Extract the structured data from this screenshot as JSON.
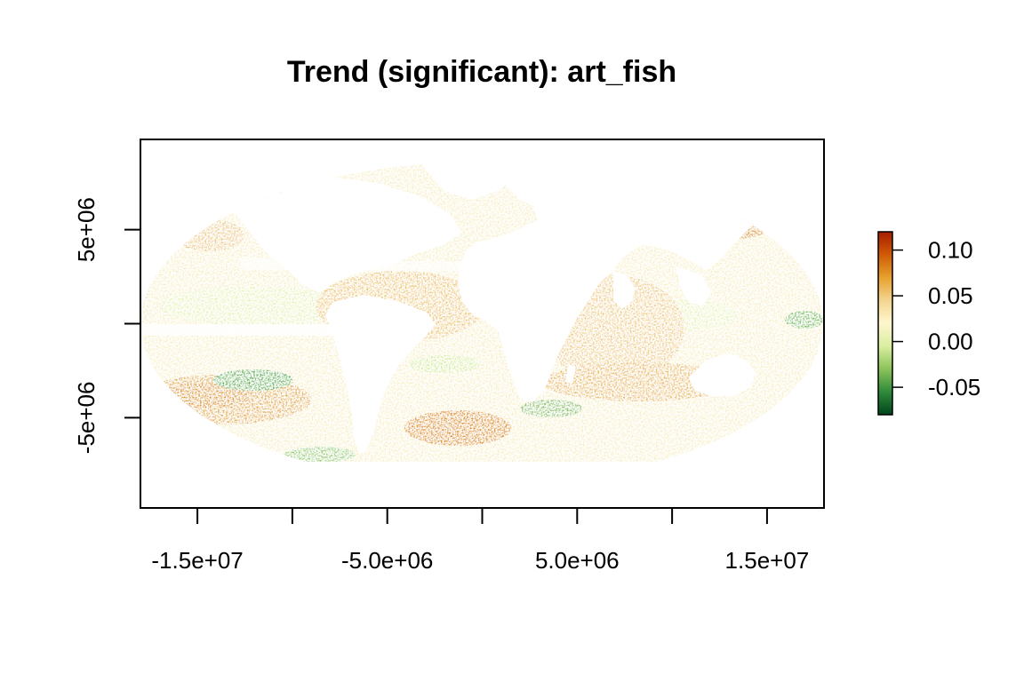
{
  "plot": {
    "title": "Trend (significant): art_fish"
  },
  "chart_data": {
    "type": "heatmap",
    "title": "Trend (significant): art_fish",
    "projection": "Mollweide",
    "xlabel": "",
    "ylabel": "",
    "x_ticks": [
      {
        "value": -15000000,
        "label": "-1.5e+07"
      },
      {
        "value": -10000000,
        "label": ""
      },
      {
        "value": -5000000,
        "label": "-5.0e+06"
      },
      {
        "value": 0,
        "label": ""
      },
      {
        "value": 5000000,
        "label": "5.0e+06"
      },
      {
        "value": 10000000,
        "label": ""
      },
      {
        "value": 15000000,
        "label": "1.5e+07"
      }
    ],
    "y_ticks": [
      {
        "value": 5000000,
        "label": "5e+06"
      },
      {
        "value": 0,
        "label": ""
      },
      {
        "value": -5000000,
        "label": "-5e+06"
      }
    ],
    "xlim": [
      -18000000,
      18000000
    ],
    "ylim": [
      -9800000,
      9800000
    ],
    "grid": false,
    "legend": {
      "placement": "right",
      "range": [
        -0.08,
        0.12
      ],
      "colors": [
        "#00441b",
        "#2f8a3b",
        "#8cc35a",
        "#d9eea0",
        "#fff6cf",
        "#f3d58f",
        "#e6a12e",
        "#d05b05",
        "#a61c00"
      ],
      "ticks": [
        {
          "value": 0.1,
          "label": "0.10"
        },
        {
          "value": 0.05,
          "label": "0.05"
        },
        {
          "value": 0.0,
          "label": "0.00"
        },
        {
          "value": -0.05,
          "label": "-0.05"
        }
      ]
    }
  }
}
